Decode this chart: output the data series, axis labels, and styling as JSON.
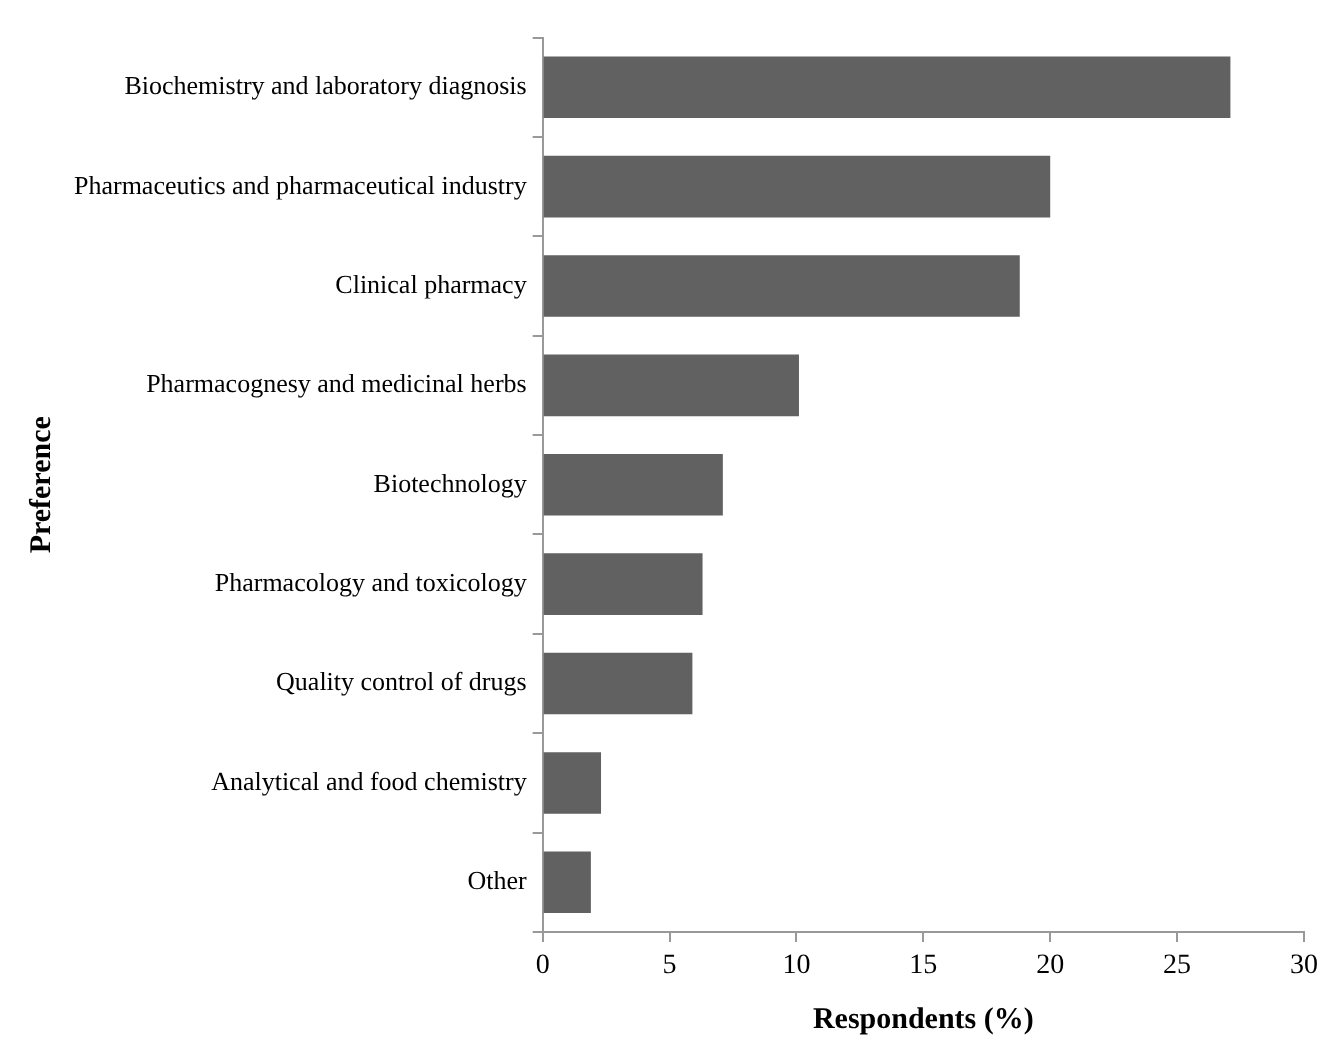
{
  "chart_data": {
    "type": "bar",
    "orientation": "horizontal",
    "xlabel": "Respondents (%)",
    "ylabel": "Preference",
    "categories": [
      "Biochemistry and laboratory diagnosis",
      "Pharmaceutics and pharmaceutical industry",
      "Clinical pharmacy",
      "Pharmacognesy and medicinal herbs",
      "Biotechnology",
      "Pharmacology and toxicology",
      "Quality control of drugs",
      "Analytical and food chemistry",
      "Other"
    ],
    "values": [
      27.1,
      20.0,
      18.8,
      10.1,
      7.1,
      6.3,
      5.9,
      2.3,
      1.9
    ],
    "color": "#616161",
    "xlim": [
      0,
      30
    ],
    "xticks": [
      0,
      5,
      10,
      15,
      20,
      25,
      30
    ],
    "grid": false,
    "legend": false
  }
}
